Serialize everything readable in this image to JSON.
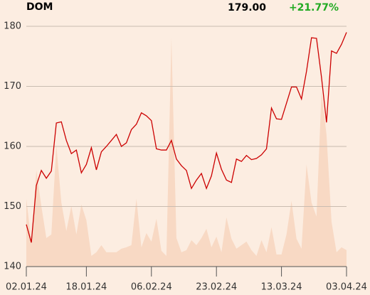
{
  "chart_data": {
    "type": "line",
    "title": "DOM",
    "price": "179.00",
    "change": "+21.77%",
    "categories": [
      "02.01.24",
      null,
      null,
      null,
      null,
      null,
      null,
      null,
      null,
      null,
      null,
      null,
      "18.01.24",
      null,
      null,
      null,
      null,
      null,
      null,
      null,
      null,
      null,
      null,
      null,
      null,
      "06.02.24",
      null,
      null,
      null,
      null,
      null,
      null,
      null,
      null,
      null,
      null,
      null,
      null,
      "23.02.24",
      null,
      null,
      null,
      null,
      null,
      null,
      null,
      null,
      null,
      null,
      null,
      null,
      "13.03.24",
      null,
      null,
      null,
      null,
      null,
      null,
      null,
      null,
      null,
      null,
      null,
      null,
      "03.04.24"
    ],
    "values": [
      147.0,
      144.0,
      153.5,
      156.0,
      154.7,
      155.9,
      163.9,
      164.1,
      161.0,
      158.8,
      159.4,
      155.6,
      157.0,
      159.8,
      156.1,
      159.1,
      160.0,
      161.0,
      162.0,
      160.0,
      160.6,
      162.8,
      163.7,
      165.6,
      165.1,
      164.3,
      159.6,
      159.4,
      159.4,
      161.0,
      157.9,
      156.8,
      156.0,
      153.0,
      154.4,
      155.5,
      153.0,
      155.1,
      158.9,
      156.2,
      154.4,
      154.0,
      157.9,
      157.5,
      158.5,
      157.8,
      158.0,
      158.6,
      159.6,
      166.4,
      164.6,
      164.5,
      167.2,
      169.9,
      169.9,
      167.9,
      172.5,
      178.1,
      178.0,
      171.5,
      164.0,
      175.9,
      175.5,
      177.0,
      179.0
    ],
    "volume": [
      95,
      35,
      135,
      85,
      40,
      45,
      170,
      90,
      50,
      85,
      45,
      87,
      65,
      15,
      20,
      30,
      20,
      20,
      20,
      25,
      27,
      30,
      95,
      27,
      47,
      35,
      67,
      22,
      15,
      320,
      40,
      20,
      23,
      37,
      30,
      40,
      53,
      27,
      42,
      20,
      69,
      39,
      25,
      30,
      35,
      23,
      15,
      37,
      20,
      55,
      17,
      17,
      45,
      92,
      39,
      25,
      143,
      90,
      70,
      245,
      185,
      63,
      20,
      27,
      23
    ],
    "color": "#cc0000",
    "volume_color": "#f8d9c4",
    "change_color": "#22aa22",
    "ylim": [
      140,
      180
    ],
    "yticks": [
      140,
      150,
      160,
      170,
      180
    ],
    "grid": true
  }
}
